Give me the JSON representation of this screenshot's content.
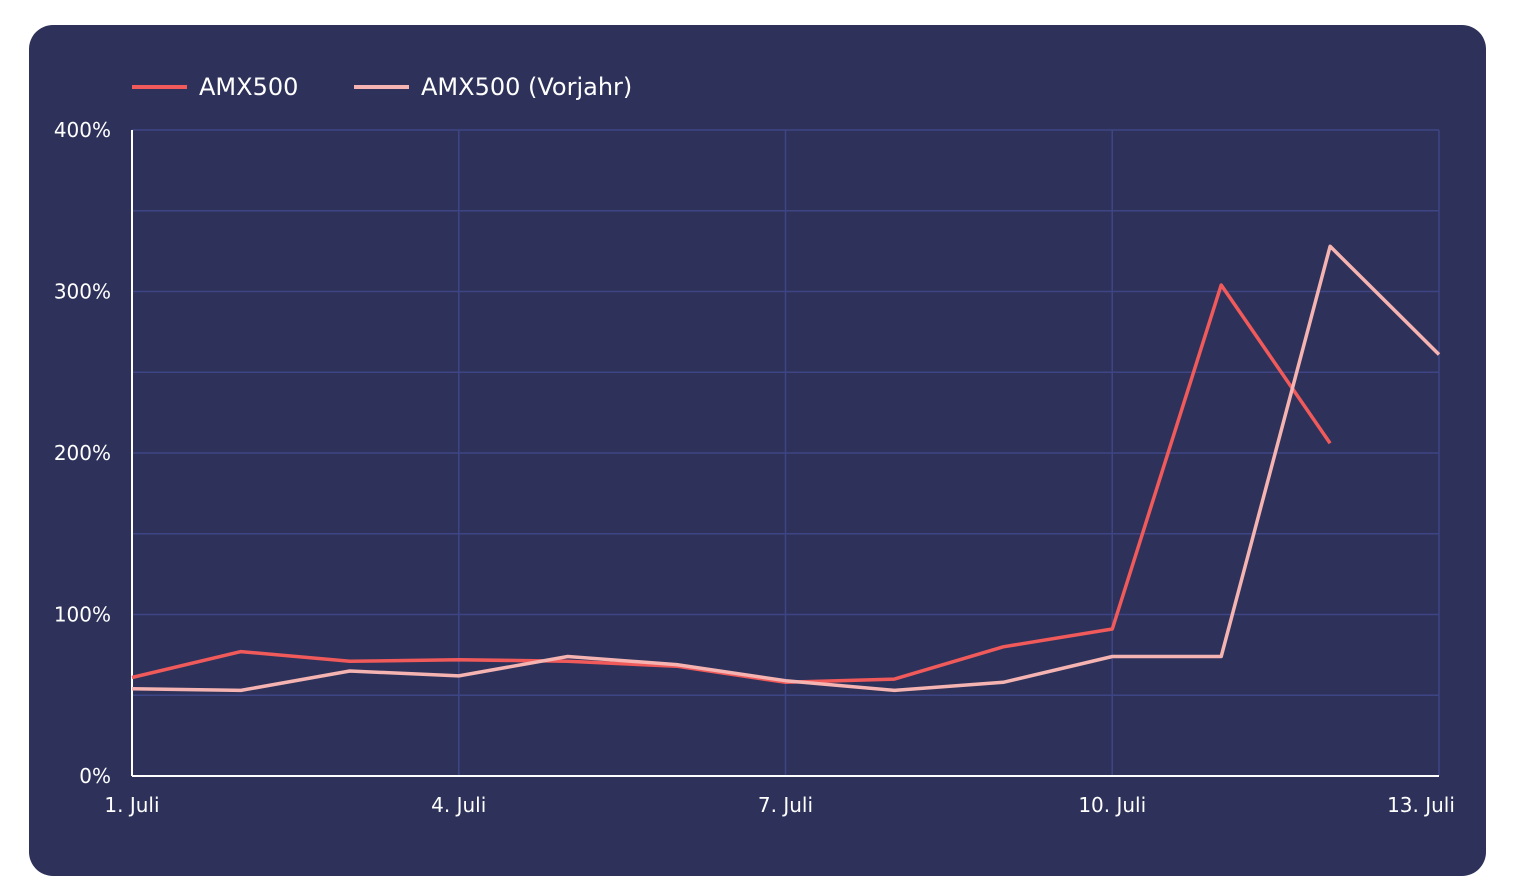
{
  "chart_data": {
    "type": "line",
    "x": [
      "1. Juli",
      "2. Juli",
      "3. Juli",
      "4. Juli",
      "5. Juli",
      "6. Juli",
      "7. Juli",
      "8. Juli",
      "9. Juli",
      "10. Juli",
      "11. Juli",
      "12. Juli",
      "13. Juli"
    ],
    "x_tick_labels": [
      "1. Juli",
      "4. Juli",
      "7. Juli",
      "10. Juli",
      "13. Juli"
    ],
    "y_tick_labels": [
      "0%",
      "100%",
      "200%",
      "300%",
      "400%"
    ],
    "ylim": [
      0,
      400
    ],
    "y_unit": "%",
    "grid": true,
    "legend_position": "top-left",
    "series": [
      {
        "name": "AMX500",
        "color": "#f05a5a",
        "values": [
          61,
          77,
          71,
          72,
          71,
          68,
          58,
          60,
          80,
          91,
          304,
          206,
          null
        ]
      },
      {
        "name": "AMX500 (Vorjahr)",
        "color": "#f5b3b1",
        "values": [
          54,
          53,
          65,
          62,
          74,
          69,
          59,
          53,
          58,
          74,
          74,
          328,
          261
        ]
      }
    ]
  },
  "style": {
    "background": "#2e325a",
    "grid_color": "#3d4585",
    "axis_color": "#ffffff"
  }
}
